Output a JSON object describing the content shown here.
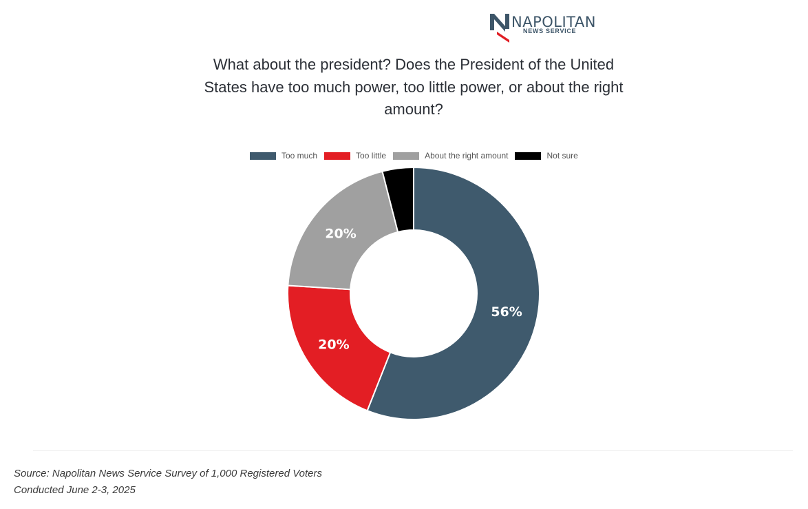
{
  "brand": {
    "name": "NAPOLITAN",
    "sub": "NEWS SERVICE",
    "colors": {
      "navy": "#3d5568",
      "red": "#e01e24"
    }
  },
  "chart_data": {
    "type": "pie",
    "title": "What about the president? Does the President of the United States have too much power, too little power, or about the right amount?",
    "donut": true,
    "legend_position": "top",
    "categories": [
      "Too much",
      "Too little",
      "About the right amount",
      "Not sure"
    ],
    "values": [
      56,
      20,
      20,
      4
    ],
    "labels": [
      "56%",
      "20%",
      "20%",
      ""
    ],
    "colors": [
      "#3f5a6d",
      "#e31e24",
      "#a0a0a0",
      "#000000"
    ]
  },
  "footer": {
    "source": "Source: Napolitan News Service Survey of 1,000 Registered Voters",
    "conducted": "Conducted June 2-3, 2025"
  }
}
